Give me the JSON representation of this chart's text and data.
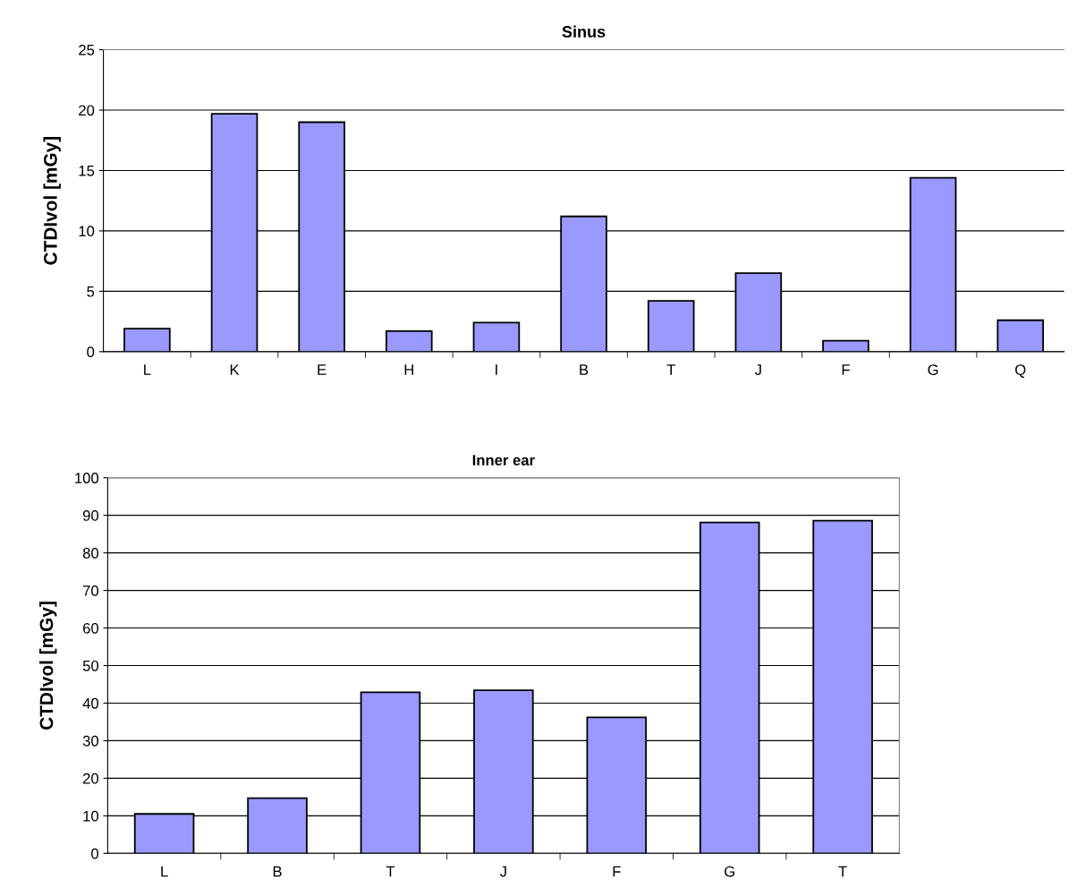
{
  "chart_data": [
    {
      "type": "bar",
      "title": "Sinus",
      "ylabel": "CTDIvol [mGy]",
      "categories": [
        "L",
        "K",
        "E",
        "H",
        "I",
        "B",
        "T",
        "J",
        "F",
        "G",
        "Q"
      ],
      "values": [
        1.9,
        19.7,
        19.0,
        1.7,
        2.4,
        11.2,
        4.2,
        6.5,
        0.9,
        14.4,
        2.6
      ],
      "color": "#9999ff",
      "ylim": [
        0,
        25
      ],
      "yticks": [
        0,
        5,
        10,
        15,
        20,
        25
      ],
      "grid": "y"
    },
    {
      "type": "bar",
      "title": "Inner ear",
      "ylabel": "CTDIvol [mGy]",
      "categories": [
        "L",
        "B",
        "T",
        "J",
        "F",
        "G",
        "T"
      ],
      "values": [
        10.5,
        14.7,
        42.9,
        43.4,
        36.2,
        88.1,
        88.6
      ],
      "color": "#9999ff",
      "ylim": [
        0,
        100
      ],
      "yticks": [
        0,
        10,
        20,
        30,
        40,
        50,
        60,
        70,
        80,
        90,
        100
      ],
      "grid": "y"
    }
  ]
}
